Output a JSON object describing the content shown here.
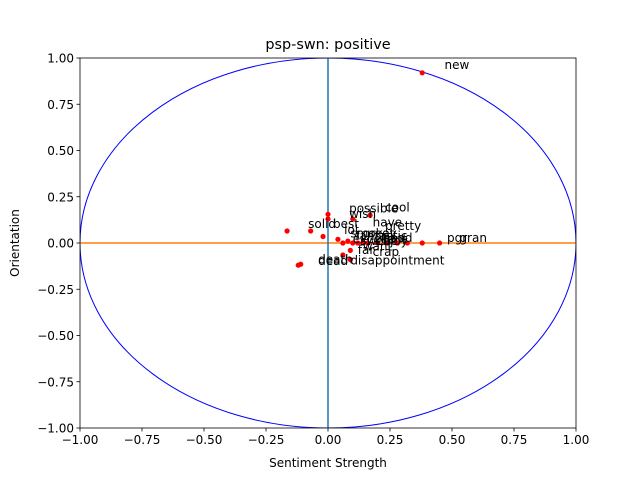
{
  "chart_data": {
    "type": "scatter",
    "title": "psp-swn: positive",
    "xlabel": "Sentiment Strength",
    "ylabel": "Orientation",
    "xlim": [
      -1.0,
      1.0
    ],
    "ylim": [
      -1.0,
      1.0
    ],
    "xticks": [
      "−1.00",
      "−0.75",
      "−0.50",
      "−0.25",
      "0.00",
      "0.25",
      "0.50",
      "0.75",
      "1.00"
    ],
    "yticks": [
      "−1.00",
      "−0.75",
      "−0.50",
      "−0.25",
      "0.00",
      "0.25",
      "0.50",
      "0.75",
      "1.00"
    ],
    "xtick_values": [
      -1.0,
      -0.75,
      -0.5,
      -0.25,
      0.0,
      0.25,
      0.5,
      0.75,
      1.0
    ],
    "ytick_values": [
      -1.0,
      -0.75,
      -0.5,
      -0.25,
      0.0,
      0.25,
      0.5,
      0.75,
      1.0
    ],
    "colors": {
      "points": "#ff0000",
      "circle": "#0000ff",
      "horizontal_axis_line": "#ff7f0e",
      "vertical_axis_line": "#1f77b4"
    },
    "unit_circle": true,
    "grid": false,
    "points": [
      {
        "x": 0.38,
        "y": 0.92
      },
      {
        "x": 0.17,
        "y": 0.15
      },
      {
        "x": 0.0,
        "y": 0.155
      },
      {
        "x": 0.0,
        "y": 0.13
      },
      {
        "x": 0.1,
        "y": 0.13
      },
      {
        "x": -0.165,
        "y": 0.065
      },
      {
        "x": -0.07,
        "y": 0.065
      },
      {
        "x": -0.02,
        "y": 0.035
      },
      {
        "x": 0.04,
        "y": 0.02
      },
      {
        "x": 0.06,
        "y": 0.0
      },
      {
        "x": 0.08,
        "y": 0.01
      },
      {
        "x": 0.1,
        "y": 0.0
      },
      {
        "x": 0.12,
        "y": 0.0
      },
      {
        "x": 0.14,
        "y": 0.0
      },
      {
        "x": 0.16,
        "y": 0.0
      },
      {
        "x": 0.2,
        "y": 0.0
      },
      {
        "x": 0.24,
        "y": 0.0
      },
      {
        "x": 0.28,
        "y": 0.0
      },
      {
        "x": 0.32,
        "y": 0.0
      },
      {
        "x": 0.38,
        "y": 0.0
      },
      {
        "x": 0.45,
        "y": 0.0
      },
      {
        "x": 0.09,
        "y": -0.04
      },
      {
        "x": 0.06,
        "y": -0.065
      },
      {
        "x": 0.09,
        "y": -0.09
      },
      {
        "x": -0.12,
        "y": -0.12
      },
      {
        "x": -0.11,
        "y": -0.115
      }
    ],
    "labels": [
      {
        "text": "new",
        "x": 0.47,
        "y": 0.94
      },
      {
        "text": "cool",
        "x": 0.23,
        "y": 0.17
      },
      {
        "text": "possible",
        "x": 0.085,
        "y": 0.165
      },
      {
        "text": "wish",
        "x": 0.085,
        "y": 0.135
      },
      {
        "text": "solid",
        "x": -0.08,
        "y": 0.08
      },
      {
        "text": "best",
        "x": 0.02,
        "y": 0.08
      },
      {
        "text": "have",
        "x": 0.18,
        "y": 0.09
      },
      {
        "text": "pretty",
        "x": 0.23,
        "y": 0.07
      },
      {
        "text": "lol",
        "x": 0.065,
        "y": 0.05
      },
      {
        "text": "smokey",
        "x": 0.09,
        "y": 0.03
      },
      {
        "text": "fantastic",
        "x": 0.11,
        "y": 0.015
      },
      {
        "text": "great",
        "x": 0.14,
        "y": 0.03
      },
      {
        "text": "excellent",
        "x": 0.1,
        "y": 0.0
      },
      {
        "text": "good",
        "x": 0.22,
        "y": 0.005
      },
      {
        "text": "sweet",
        "x": 0.13,
        "y": -0.01
      },
      {
        "text": "enjoy",
        "x": 0.19,
        "y": -0.01
      },
      {
        "text": "pgr",
        "x": 0.48,
        "y": 0.005
      },
      {
        "text": "gran",
        "x": 0.53,
        "y": 0.005
      },
      {
        "text": "want",
        "x": 0.14,
        "y": -0.04
      },
      {
        "text": "far",
        "x": 0.12,
        "y": -0.06
      },
      {
        "text": "crap",
        "x": 0.18,
        "y": -0.07
      },
      {
        "text": "disappointment",
        "x": 0.09,
        "y": -0.115
      },
      {
        "text": "dead",
        "x": -0.04,
        "y": -0.12
      },
      {
        "text": "death",
        "x": -0.04,
        "y": -0.11
      }
    ]
  }
}
